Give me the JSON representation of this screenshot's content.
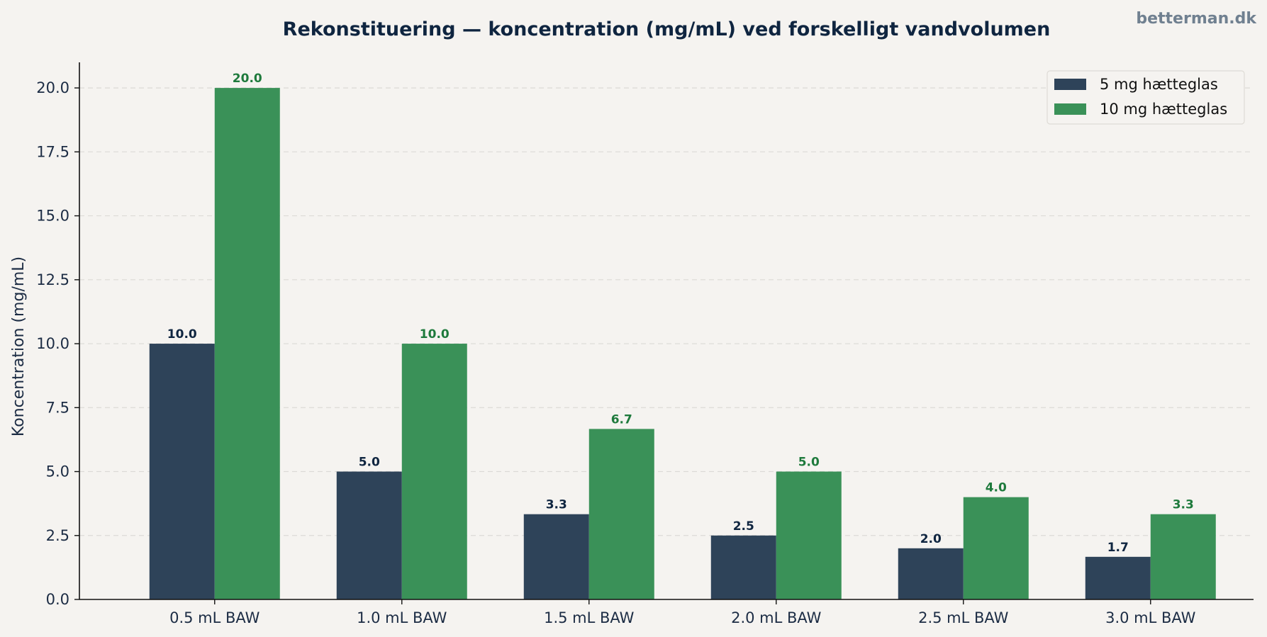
{
  "watermark": "betterman.dk",
  "chart_data": {
    "type": "bar",
    "title": "Rekonstituering — koncentration (mg/mL) ved forskelligt vandvolumen",
    "xlabel": "",
    "ylabel": "Koncentration (mg/mL)",
    "categories": [
      "0.5 mL BAW",
      "1.0 mL BAW",
      "1.5 mL BAW",
      "2.0 mL BAW",
      "2.5 mL BAW",
      "3.0 mL BAW"
    ],
    "series": [
      {
        "name": "5 mg hætteglas",
        "color": "#2e4359",
        "label_color": "#0f2540",
        "values": [
          10.0,
          5.0,
          3.3333,
          2.5,
          2.0,
          1.6667
        ],
        "data_labels": [
          "10.0",
          "5.0",
          "3.3",
          "2.5",
          "2.0",
          "1.7"
        ]
      },
      {
        "name": "10 mg hætteglas",
        "color": "#3a9158",
        "label_color": "#1e7a3c",
        "values": [
          20.0,
          10.0,
          6.6667,
          5.0,
          4.0,
          3.3333
        ],
        "data_labels": [
          "20.0",
          "10.0",
          "6.7",
          "5.0",
          "4.0",
          "3.3"
        ]
      }
    ],
    "ylim": [
      0,
      21
    ],
    "yticks": [
      0.0,
      2.5,
      5.0,
      7.5,
      10.0,
      12.5,
      15.0,
      17.5,
      20.0
    ],
    "ytick_labels": [
      "0.0",
      "2.5",
      "5.0",
      "7.5",
      "10.0",
      "12.5",
      "15.0",
      "17.5",
      "20.0"
    ],
    "grid": true,
    "legend_position": "top-right"
  }
}
